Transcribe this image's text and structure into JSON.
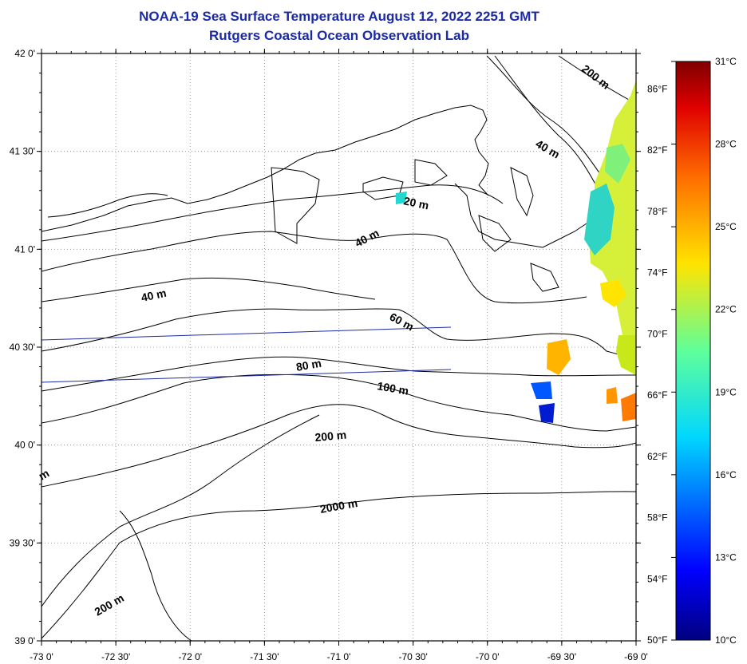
{
  "header": {
    "title": "NOAA-19 Sea Surface Temperature August 12, 2022 2251 GMT",
    "subtitle": "Rutgers Coastal Ocean Observation Lab"
  },
  "map": {
    "lat_range": [
      39.0,
      42.0
    ],
    "lon_range": [
      -73.0,
      -69.0
    ],
    "lat_labels": [
      "42 0'",
      "41 30'",
      "41 0'",
      "40 30'",
      "40 0'",
      "39 30'",
      "39 0'"
    ],
    "lon_labels": [
      "-73 0'",
      "-72 30'",
      "-72 0'",
      "-71 30'",
      "-71 0'",
      "-70 30'",
      "-70 0'",
      "-69 30'",
      "-69 0'"
    ],
    "fahrenheit_labels": [
      "86°F",
      "82°F",
      "78°F",
      "74°F",
      "70°F",
      "66°F",
      "62°F",
      "58°F",
      "54°F",
      "50°F"
    ],
    "contour_labels": [
      "200 m",
      "40 m",
      "20 m",
      "40 m",
      "40 m",
      "60 m",
      "80 m",
      "100 m",
      "200 m",
      "m",
      "2000 m",
      "200 m"
    ],
    "grid": "dotted"
  },
  "colorbar": {
    "labels": [
      "31°C",
      "28°C",
      "25°C",
      "22°C",
      "19°C",
      "16°C",
      "13°C",
      "10°C"
    ],
    "min_c": 10,
    "max_c": 31,
    "colormap": "jet"
  },
  "colors": {
    "title": "#1a2aa8",
    "land_line": "#000000",
    "transect": "#1a2aa8"
  }
}
